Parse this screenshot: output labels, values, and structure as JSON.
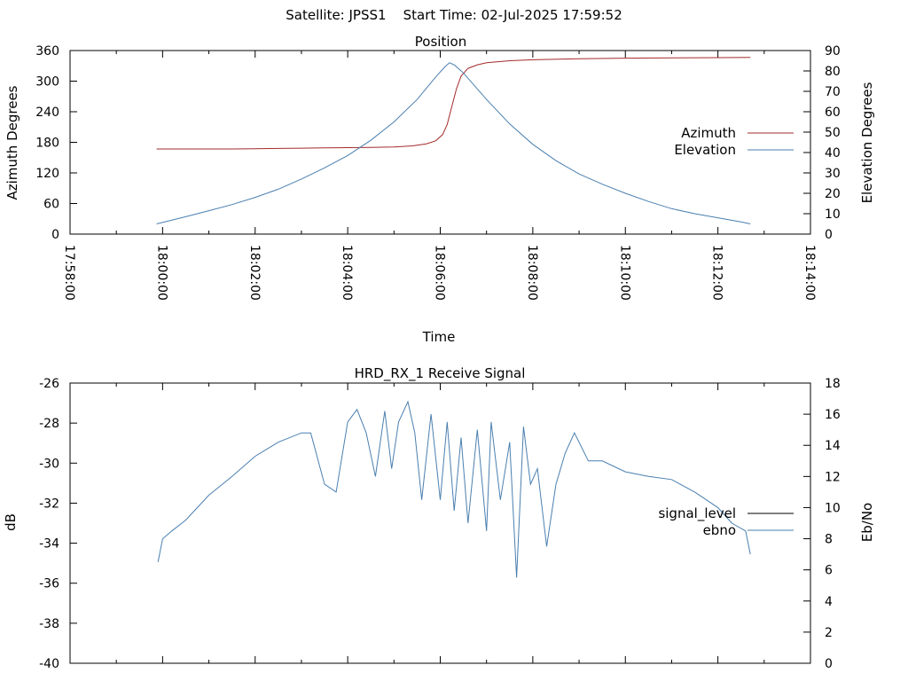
{
  "page": {
    "header": "Satellite: JPSS1    Start Time: 02-Jul-2025 17:59:52"
  },
  "chart_data": [
    {
      "type": "line",
      "title": "Position",
      "xlabel": "Time",
      "ylabel": "Azimuth Degrees",
      "y2label": "Elevation Degrees",
      "x_ticks": [
        "17:58:00",
        "18:00:00",
        "18:02:00",
        "18:04:00",
        "18:06:00",
        "18:08:00",
        "18:10:00",
        "18:12:00",
        "18:14:00"
      ],
      "xlim_minutes": [
        -2,
        14
      ],
      "ylim": [
        0,
        360
      ],
      "y_ticks": [
        0,
        60,
        120,
        180,
        240,
        300,
        360
      ],
      "y2lim": [
        0,
        90
      ],
      "y2_ticks": [
        0,
        10,
        20,
        30,
        40,
        50,
        60,
        70,
        80,
        90
      ],
      "legend_position": "right",
      "grid": false,
      "series": [
        {
          "name": "Azimuth",
          "axis": "left",
          "color": "#a52a2a",
          "x_minutes": [
            -0.13,
            0.5,
            1,
            1.5,
            2,
            2.5,
            3,
            3.5,
            4,
            4.5,
            5,
            5.4,
            5.7,
            5.9,
            6.05,
            6.15,
            6.25,
            6.35,
            6.45,
            6.6,
            6.8,
            7,
            7.5,
            8,
            9,
            10,
            11,
            12,
            12.7
          ],
          "values": [
            167,
            167,
            167,
            167,
            167.5,
            168,
            168.5,
            169,
            169.5,
            170,
            171,
            173,
            177,
            183,
            195,
            215,
            250,
            285,
            310,
            325,
            332,
            336,
            340,
            342,
            344,
            345,
            345.5,
            346,
            346.5
          ]
        },
        {
          "name": "Elevation",
          "axis": "right",
          "color": "#4a7fb0",
          "x_minutes": [
            -0.13,
            0.5,
            1,
            1.5,
            2,
            2.5,
            3,
            3.5,
            4,
            4.5,
            5,
            5.5,
            5.9,
            6.1,
            6.2,
            6.3,
            6.5,
            7,
            7.5,
            8,
            8.5,
            9,
            9.5,
            10,
            10.5,
            11,
            11.5,
            12,
            12.5,
            12.7
          ],
          "values": [
            5,
            8.5,
            11.5,
            14.5,
            18,
            22,
            27,
            32.5,
            38.5,
            46,
            55,
            66,
            77,
            82,
            84,
            83,
            79,
            66,
            54,
            44,
            36,
            29.5,
            24.5,
            20,
            16,
            12.5,
            10,
            8,
            6,
            5
          ]
        }
      ]
    },
    {
      "type": "line",
      "title": "HRD_RX_1 Receive Signal",
      "xlabel": "",
      "ylabel": "dB",
      "y2label": "Eb/No",
      "xlim_minutes": [
        -2,
        14
      ],
      "ylim": [
        -40,
        -26
      ],
      "y_ticks": [
        -40,
        -38,
        -36,
        -34,
        -32,
        -30,
        -28,
        -26
      ],
      "y2lim": [
        0,
        18
      ],
      "y2_ticks": [
        0,
        2,
        4,
        6,
        8,
        10,
        12,
        14,
        16,
        18
      ],
      "legend_position": "right",
      "grid": false,
      "series": [
        {
          "name": "signal_level",
          "axis": "left",
          "color": "#000000",
          "x_minutes": [],
          "values": []
        },
        {
          "name": "ebno",
          "axis": "right",
          "color": "#4a7fb0",
          "x_minutes": [
            -0.1,
            0,
            0.2,
            0.5,
            1,
            1.5,
            2,
            2.5,
            3,
            3.2,
            3.5,
            3.75,
            4,
            4.2,
            4.4,
            4.6,
            4.8,
            4.95,
            5.1,
            5.3,
            5.45,
            5.6,
            5.8,
            6,
            6.15,
            6.3,
            6.45,
            6.6,
            6.8,
            7,
            7.1,
            7.3,
            7.5,
            7.65,
            7.8,
            7.95,
            8.1,
            8.3,
            8.5,
            8.7,
            8.9,
            9.2,
            9.5,
            10,
            10.5,
            11,
            11.5,
            12,
            12.3,
            12.6,
            12.7
          ],
          "values": [
            6.5,
            8,
            8.5,
            9.2,
            10.8,
            12,
            13.3,
            14.2,
            14.8,
            14.8,
            11.5,
            11,
            15.5,
            16.3,
            14.8,
            12,
            16.2,
            12.5,
            15.5,
            16.8,
            14.8,
            10.5,
            16,
            10.5,
            15.5,
            9.8,
            14.5,
            9,
            15,
            8.5,
            15.5,
            10.5,
            14.2,
            5.5,
            15.2,
            11.5,
            12.5,
            7.5,
            11.5,
            13.5,
            14.8,
            13,
            13,
            12.3,
            12,
            11.8,
            11,
            10,
            9,
            8.5,
            7
          ]
        }
      ]
    }
  ]
}
